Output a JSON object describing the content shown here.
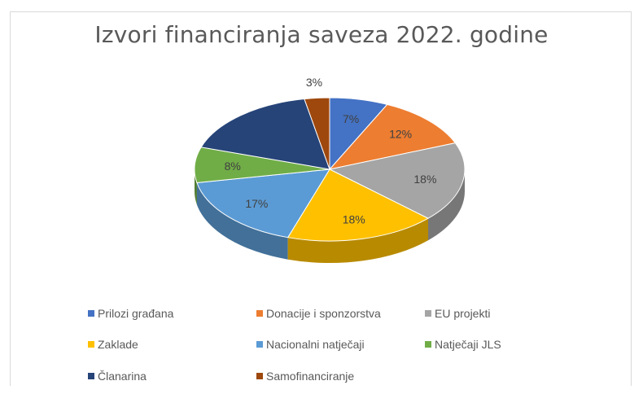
{
  "chart_data": {
    "type": "pie",
    "title": "Izvori financiranja saveza 2022. godine",
    "categories": [
      "Prilozi građana",
      "Donacije i sponzorstva",
      "EU projekti",
      "Zaklade",
      "Nacionalni natječaji",
      "Natječaji JLS",
      "Članarina",
      "Samofinanciranje"
    ],
    "values": [
      7,
      12,
      18,
      18,
      17,
      8,
      17,
      3
    ],
    "labels": [
      "7%",
      "12%",
      "18%",
      "18%",
      "17%",
      "8%",
      "",
      "3%"
    ],
    "colors": [
      "#4472C4",
      "#ED7D31",
      "#A5A5A5",
      "#FFC000",
      "#5B9BD5",
      "#70AD47",
      "#264478",
      "#9E480E"
    ],
    "legend_position": "bottom",
    "style": "3d"
  }
}
